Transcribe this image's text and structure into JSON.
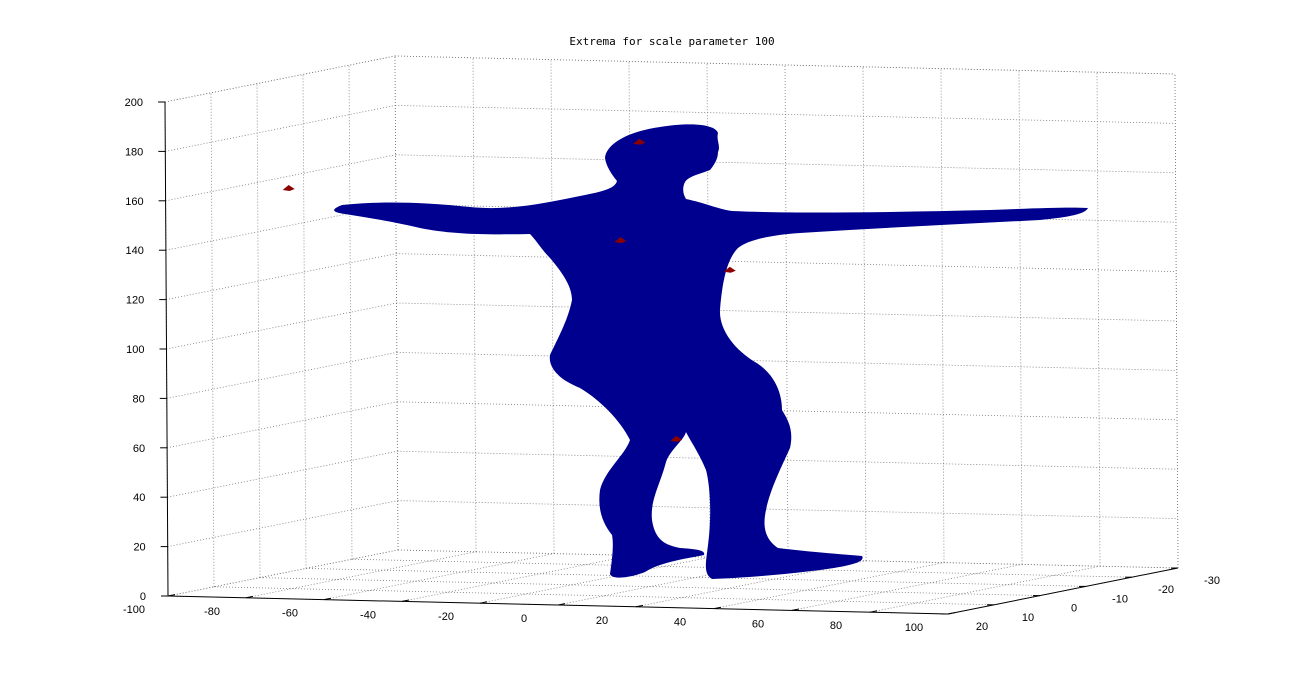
{
  "chart_data": {
    "type": "surface3d",
    "title": "Extrema for scale parameter  100",
    "xlabel": "",
    "ylabel": "",
    "zlabel": "",
    "grid": true,
    "xlim": [
      -100,
      100
    ],
    "ylim": [
      -30,
      20
    ],
    "zlim": [
      0,
      200
    ],
    "x_ticks": [
      "-100",
      "-80",
      "-60",
      "-40",
      "-20",
      "0",
      "20",
      "40",
      "60",
      "80",
      "100"
    ],
    "y_ticks": [
      "20",
      "10",
      "0",
      "-10",
      "-20",
      "-30"
    ],
    "z_ticks": [
      "0",
      "20",
      "40",
      "60",
      "80",
      "100",
      "120",
      "140",
      "160",
      "180",
      "200"
    ],
    "series": [
      {
        "kind": "surface",
        "color": "#00008f"
      },
      {
        "kind": "extrema-markers",
        "color": "#8b0000",
        "points": [
          {
            "x": -95,
            "z": 157
          },
          {
            "x": -5,
            "z": 179
          },
          {
            "x": -10,
            "z": 139
          },
          {
            "x": 18,
            "z": 128
          },
          {
            "x": 4,
            "z": 59
          }
        ]
      }
    ]
  },
  "colors": {
    "surface": "#00008f",
    "markers": "#8b0000",
    "grid": "#7a7a7a"
  }
}
